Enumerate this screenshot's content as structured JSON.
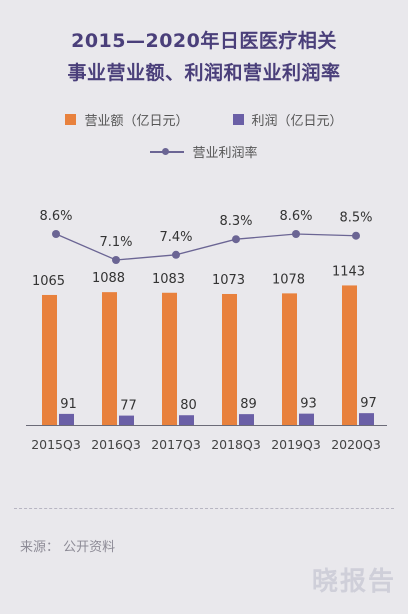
{
  "title_line1": "2015—2020年日医医疗相关",
  "title_line2": "事业营业额、利润和营业利润率",
  "legend": {
    "revenue": "营业额（亿日元）",
    "profit": "利润（亿日元）",
    "margin": "营业利润率"
  },
  "colors": {
    "revenue": "#e8813d",
    "profit": "#6a5fa6",
    "margin_line": "#6b6594"
  },
  "source": "来源：  公开资料",
  "watermark": "晓报告",
  "chart_data": {
    "type": "bar",
    "categories": [
      "2015Q3",
      "2016Q3",
      "2017Q3",
      "2018Q3",
      "2019Q3",
      "2020Q3"
    ],
    "series": [
      {
        "name": "营业额（亿日元）",
        "values": [
          1065,
          1088,
          1083,
          1073,
          1078,
          1143
        ]
      },
      {
        "name": "利润（亿日元）",
        "values": [
          91,
          77,
          80,
          89,
          93,
          97
        ]
      }
    ],
    "line_series": {
      "name": "营业利润率",
      "values": [
        8.6,
        7.1,
        7.4,
        8.3,
        8.6,
        8.5
      ],
      "labels": [
        "8.6%",
        "7.1%",
        "7.4%",
        "8.3%",
        "8.6%",
        "8.5%"
      ]
    },
    "ylim": [
      0,
      1200
    ],
    "grid": false,
    "legend_position": "top"
  }
}
